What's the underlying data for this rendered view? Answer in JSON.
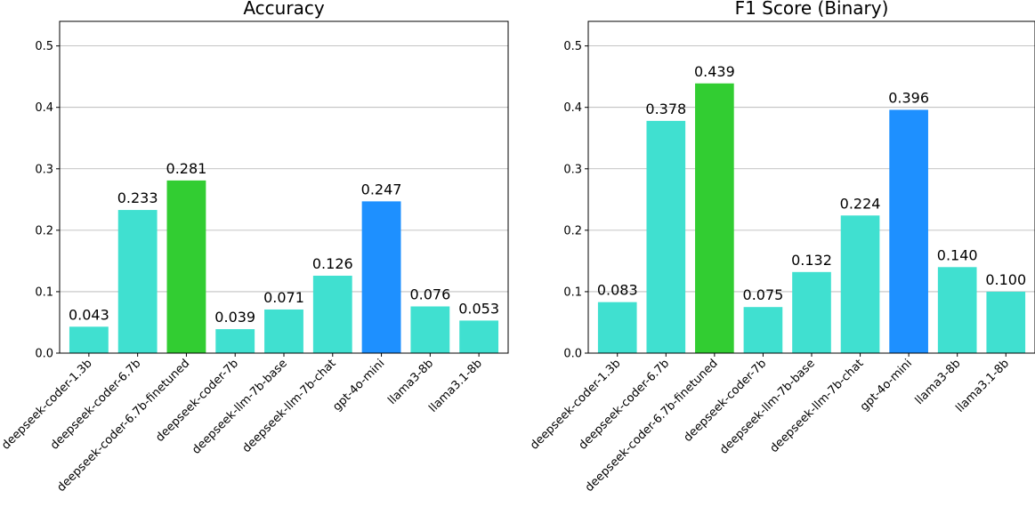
{
  "chart_data": [
    {
      "type": "bar",
      "title": "Accuracy",
      "xlabel": "",
      "ylabel": "",
      "ylim": [
        0,
        0.54
      ],
      "yticks": [
        "0.0",
        "0.1",
        "0.2",
        "0.3",
        "0.4",
        "0.5"
      ],
      "grid": "y",
      "categories": [
        "deepseek-coder-1.3b",
        "deepseek-coder-6.7b",
        "deepseek-coder-6.7b-finetuned",
        "deepseek-coder-7b",
        "deepseek-llm-7b-base",
        "deepseek-llm-7b-chat",
        "gpt-4o-mini",
        "llama3-8b",
        "llama3.1-8b"
      ],
      "values": [
        0.043,
        0.233,
        0.281,
        0.039,
        0.071,
        0.126,
        0.247,
        0.076,
        0.053
      ],
      "value_labels": [
        "0.043",
        "0.233",
        "0.281",
        "0.039",
        "0.071",
        "0.126",
        "0.247",
        "0.076",
        "0.053"
      ],
      "colors": [
        "#40e0d0",
        "#40e0d0",
        "#32cd32",
        "#40e0d0",
        "#40e0d0",
        "#40e0d0",
        "#1e90ff",
        "#40e0d0",
        "#40e0d0"
      ]
    },
    {
      "type": "bar",
      "title": "F1 Score (Binary)",
      "xlabel": "",
      "ylabel": "",
      "ylim": [
        0,
        0.54
      ],
      "yticks": [
        "0.0",
        "0.1",
        "0.2",
        "0.3",
        "0.4",
        "0.5"
      ],
      "grid": "y",
      "categories": [
        "deepseek-coder-1.3b",
        "deepseek-coder-6.7b",
        "deepseek-coder-6.7b-finetuned",
        "deepseek-coder-7b",
        "deepseek-llm-7b-base",
        "deepseek-llm-7b-chat",
        "gpt-4o-mini",
        "llama3-8b",
        "llama3.1-8b"
      ],
      "values": [
        0.083,
        0.378,
        0.439,
        0.075,
        0.132,
        0.224,
        0.396,
        0.14,
        0.1
      ],
      "value_labels": [
        "0.083",
        "0.378",
        "0.439",
        "0.075",
        "0.132",
        "0.224",
        "0.396",
        "0.140",
        "0.100"
      ],
      "colors": [
        "#40e0d0",
        "#40e0d0",
        "#32cd32",
        "#40e0d0",
        "#40e0d0",
        "#40e0d0",
        "#1e90ff",
        "#40e0d0",
        "#40e0d0"
      ]
    }
  ]
}
